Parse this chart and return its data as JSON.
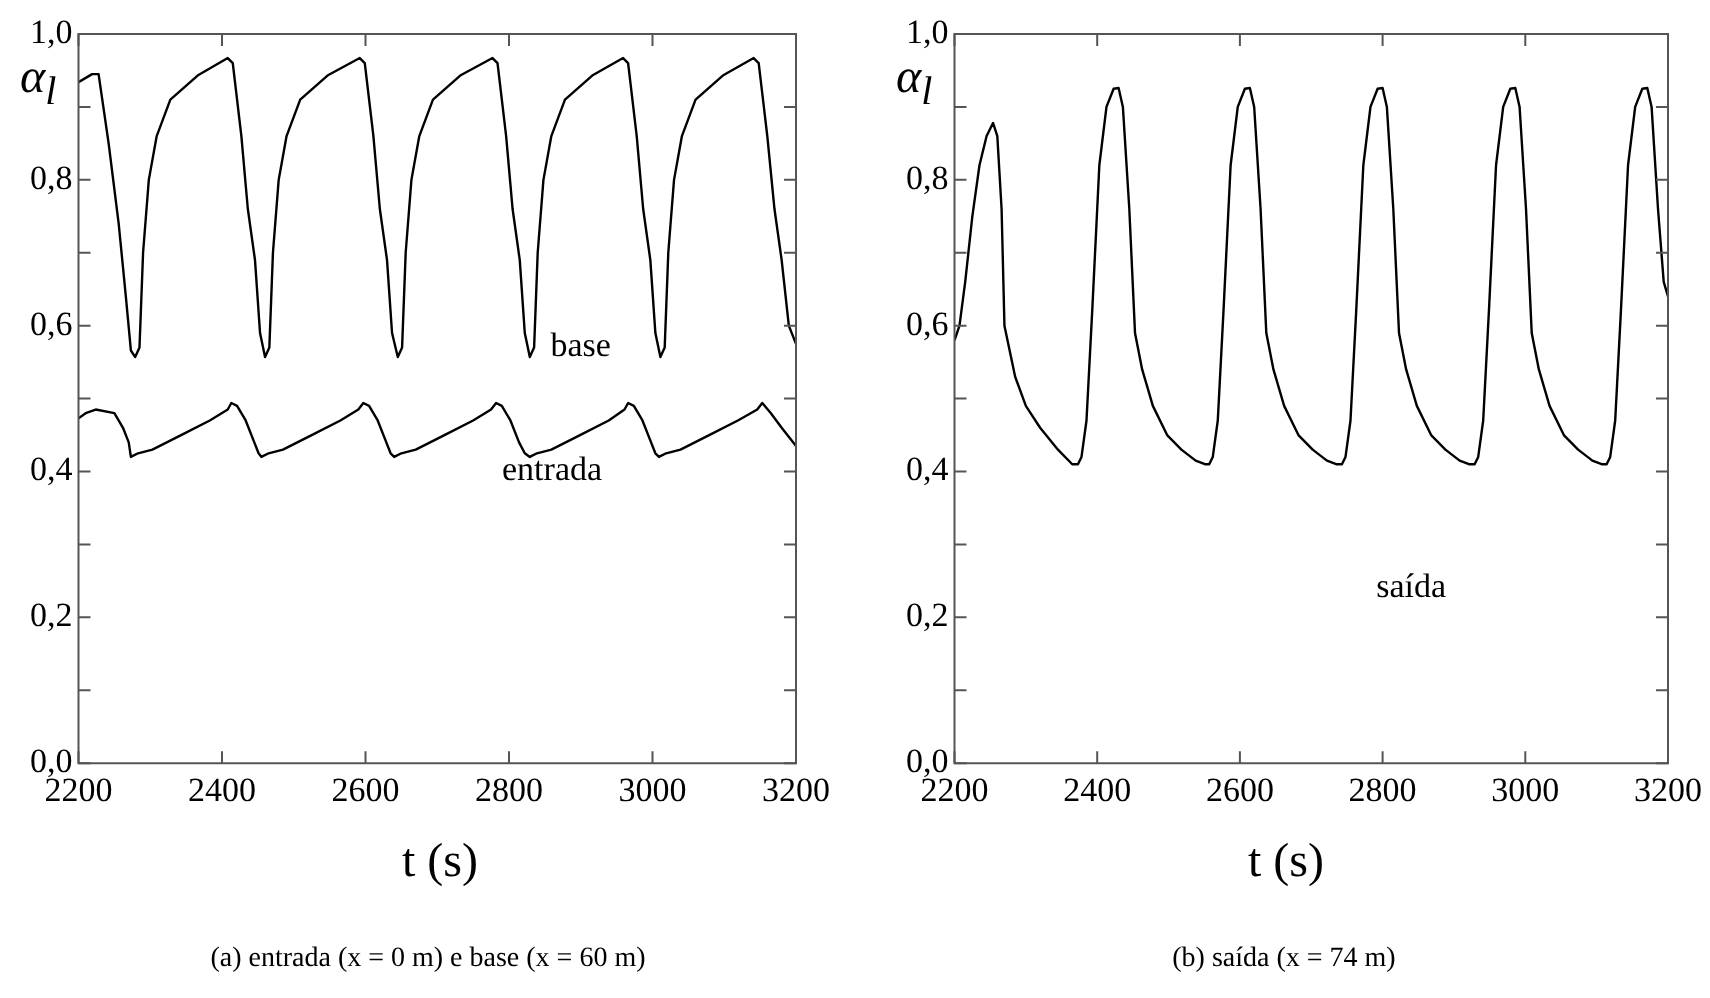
{
  "chart_data": [
    {
      "type": "line",
      "title": "(a) entrada (x = 0 m) e base (x = 60 m)",
      "xlabel": "t (s)",
      "ylabel": "α$_{l}$",
      "xlim": [
        2200,
        3200
      ],
      "ylim": [
        0,
        1
      ],
      "xticks": [
        2200,
        2400,
        2600,
        2800,
        3000,
        3200
      ],
      "yticks": [
        {
          "value": 0,
          "label": "0,0"
        },
        {
          "value": 0.1,
          "label": null
        },
        {
          "value": 0.2,
          "label": "0,2"
        },
        {
          "value": 0.3,
          "label": null
        },
        {
          "value": 0.4,
          "label": "0,4"
        },
        {
          "value": 0.5,
          "label": null
        },
        {
          "value": 0.6,
          "label": "0,6"
        },
        {
          "value": 0.7,
          "label": null
        },
        {
          "value": 0.8,
          "label": "0,8"
        },
        {
          "value": 0.9,
          "label": null
        },
        {
          "value": 1,
          "label": "1,0"
        }
      ],
      "series": [
        {
          "name": "base",
          "color": "#000000",
          "x": [
            2200,
            2219,
            2228,
            2242,
            2256,
            2266,
            2273,
            2279,
            2285,
            2290,
            2298,
            2309,
            2328,
            2366,
            2408,
            2415,
            2427,
            2436,
            2446,
            2453,
            2460,
            2466,
            2471,
            2479,
            2490,
            2509,
            2547,
            2592,
            2599,
            2611,
            2620,
            2630,
            2637,
            2645,
            2651,
            2656,
            2664,
            2675,
            2694,
            2732,
            2777,
            2784,
            2796,
            2805,
            2815,
            2822,
            2829,
            2835,
            2840,
            2848,
            2859,
            2878,
            2916,
            2959,
            2966,
            2978,
            2987,
            2997,
            3004,
            3011,
            3017,
            3022,
            3030,
            3041,
            3060,
            3098,
            3141,
            3148,
            3160,
            3170,
            3180,
            3190,
            3200
          ],
          "values": [
            0.934,
            0.945,
            0.945,
            0.85,
            0.74,
            0.64,
            0.566,
            0.557,
            0.57,
            0.7,
            0.8,
            0.86,
            0.91,
            0.943,
            0.967,
            0.96,
            0.86,
            0.76,
            0.69,
            0.59,
            0.557,
            0.57,
            0.7,
            0.8,
            0.86,
            0.91,
            0.943,
            0.967,
            0.96,
            0.86,
            0.76,
            0.69,
            0.59,
            0.557,
            0.57,
            0.7,
            0.8,
            0.86,
            0.91,
            0.943,
            0.967,
            0.96,
            0.86,
            0.76,
            0.69,
            0.59,
            0.557,
            0.57,
            0.7,
            0.8,
            0.86,
            0.91,
            0.943,
            0.967,
            0.96,
            0.86,
            0.76,
            0.69,
            0.59,
            0.557,
            0.57,
            0.7,
            0.8,
            0.86,
            0.91,
            0.943,
            0.967,
            0.96,
            0.86,
            0.76,
            0.69,
            0.6,
            0.575
          ]
        },
        {
          "name": "entrada",
          "color": "#000000",
          "x": [
            2200,
            2210,
            2224,
            2250,
            2262,
            2270,
            2273,
            2283,
            2303,
            2343,
            2383,
            2408,
            2413,
            2421,
            2433,
            2445,
            2451,
            2455,
            2465,
            2485,
            2525,
            2565,
            2590,
            2597,
            2605,
            2617,
            2629,
            2635,
            2640,
            2650,
            2670,
            2710,
            2750,
            2775,
            2782,
            2790,
            2802,
            2814,
            2822,
            2829,
            2839,
            2859,
            2899,
            2939,
            2961,
            2966,
            2974,
            2986,
            2998,
            3004,
            3009,
            3019,
            3039,
            3079,
            3119,
            3146,
            3153,
            3165,
            3180,
            3200
          ],
          "values": [
            0.473,
            0.48,
            0.485,
            0.48,
            0.46,
            0.44,
            0.42,
            0.425,
            0.43,
            0.45,
            0.47,
            0.485,
            0.494,
            0.49,
            0.47,
            0.44,
            0.425,
            0.42,
            0.425,
            0.43,
            0.45,
            0.47,
            0.485,
            0.494,
            0.49,
            0.47,
            0.44,
            0.425,
            0.42,
            0.425,
            0.43,
            0.45,
            0.47,
            0.485,
            0.494,
            0.49,
            0.47,
            0.44,
            0.425,
            0.42,
            0.425,
            0.43,
            0.45,
            0.47,
            0.485,
            0.494,
            0.49,
            0.47,
            0.44,
            0.425,
            0.42,
            0.425,
            0.43,
            0.45,
            0.47,
            0.485,
            0.494,
            0.48,
            0.46,
            0.435
          ]
        }
      ]
    },
    {
      "type": "line",
      "title": "(b) saída (x = 74 m)",
      "xlabel": "t (s)",
      "ylabel": "α$_{l}$",
      "xlim": [
        2200,
        3200
      ],
      "ylim": [
        0,
        1
      ],
      "xticks": [
        2200,
        2400,
        2600,
        2800,
        3000,
        3200
      ],
      "yticks": [
        {
          "value": 0,
          "label": "0,0"
        },
        {
          "value": 0.1,
          "label": null
        },
        {
          "value": 0.2,
          "label": "0,2"
        },
        {
          "value": 0.3,
          "label": null
        },
        {
          "value": 0.4,
          "label": "0,4"
        },
        {
          "value": 0.5,
          "label": null
        },
        {
          "value": 0.6,
          "label": "0,6"
        },
        {
          "value": 0.7,
          "label": null
        },
        {
          "value": 0.8,
          "label": "0,8"
        },
        {
          "value": 0.9,
          "label": null
        },
        {
          "value": 1,
          "label": "1,0"
        }
      ],
      "series": [
        {
          "name": "saída",
          "color": "#000000",
          "x": [
            2200,
            2207,
            2215,
            2225,
            2235,
            2245,
            2254,
            2260,
            2266,
            2270,
            2285,
            2300,
            2320,
            2345,
            2365,
            2373,
            2378,
            2385,
            2393,
            2403,
            2413,
            2423,
            2430,
            2436,
            2445,
            2453,
            2463,
            2478,
            2498,
            2518,
            2538,
            2551,
            2557,
            2562,
            2569,
            2577,
            2587,
            2597,
            2607,
            2614,
            2620,
            2629,
            2637,
            2647,
            2662,
            2682,
            2702,
            2722,
            2735,
            2743,
            2748,
            2755,
            2763,
            2773,
            2783,
            2793,
            2800,
            2806,
            2815,
            2823,
            2833,
            2848,
            2868,
            2888,
            2908,
            2921,
            2929,
            2934,
            2941,
            2949,
            2959,
            2969,
            2979,
            2986,
            2992,
            3001,
            3009,
            3019,
            3034,
            3054,
            3074,
            3094,
            3107,
            3114,
            3119,
            3126,
            3134,
            3144,
            3154,
            3164,
            3171,
            3177,
            3186,
            3194,
            3200
          ],
          "values": [
            0.58,
            0.6,
            0.66,
            0.75,
            0.82,
            0.86,
            0.878,
            0.86,
            0.76,
            0.6,
            0.53,
            0.49,
            0.46,
            0.43,
            0.41,
            0.41,
            0.42,
            0.47,
            0.62,
            0.82,
            0.9,
            0.925,
            0.926,
            0.9,
            0.76,
            0.59,
            0.54,
            0.49,
            0.45,
            0.43,
            0.415,
            0.41,
            0.41,
            0.42,
            0.47,
            0.62,
            0.82,
            0.9,
            0.925,
            0.926,
            0.9,
            0.76,
            0.59,
            0.54,
            0.49,
            0.45,
            0.43,
            0.415,
            0.41,
            0.41,
            0.42,
            0.47,
            0.62,
            0.82,
            0.9,
            0.925,
            0.926,
            0.9,
            0.76,
            0.59,
            0.54,
            0.49,
            0.45,
            0.43,
            0.415,
            0.41,
            0.41,
            0.42,
            0.47,
            0.62,
            0.82,
            0.9,
            0.925,
            0.926,
            0.9,
            0.76,
            0.59,
            0.54,
            0.49,
            0.45,
            0.43,
            0.415,
            0.41,
            0.41,
            0.42,
            0.47,
            0.62,
            0.82,
            0.9,
            0.925,
            0.926,
            0.9,
            0.76,
            0.66,
            0.64
          ]
        }
      ]
    }
  ]
}
